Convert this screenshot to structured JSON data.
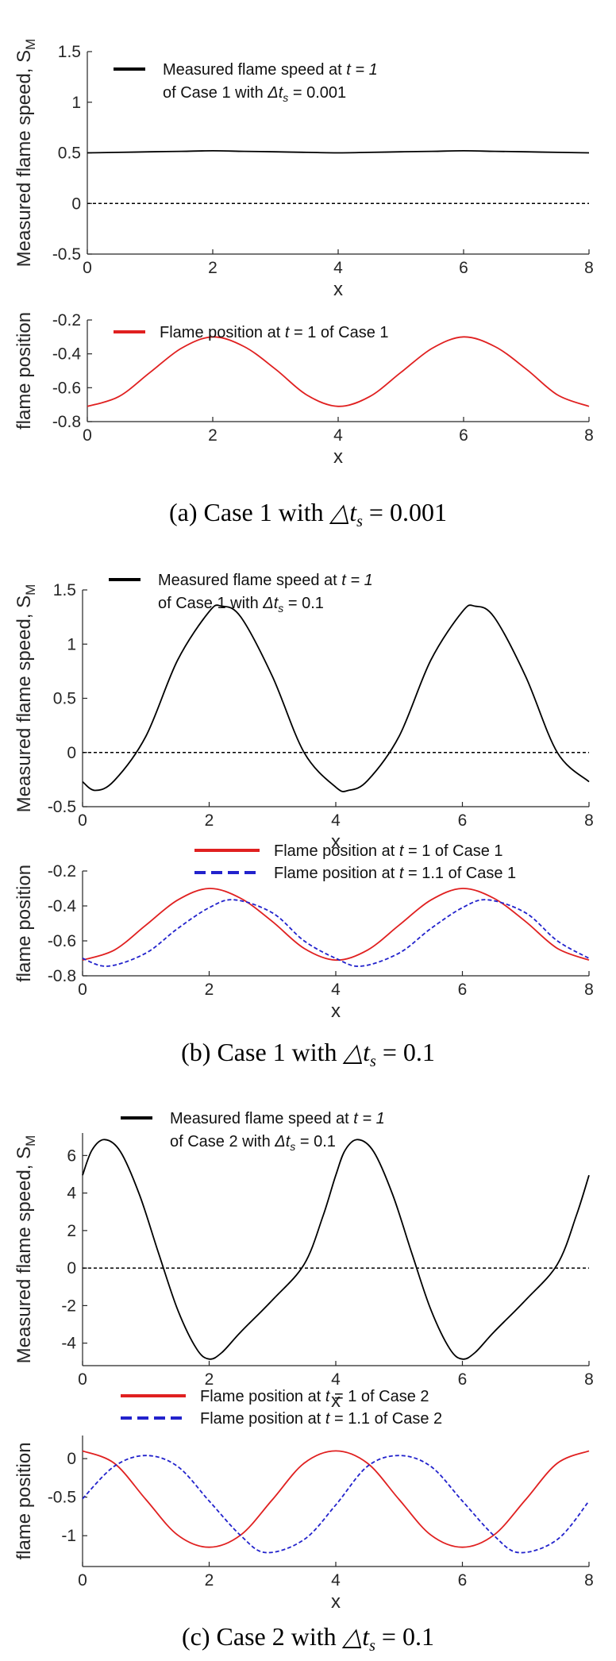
{
  "chart_data": [
    {
      "type": "line",
      "panel": "a-top",
      "xlabel": "x",
      "ylabel": "Measured flame speed, S",
      "ylabel_sub": "M",
      "xlim": [
        0,
        8
      ],
      "ylim": [
        -0.5,
        1.5
      ],
      "xticks": [
        "0",
        "2",
        "4",
        "6",
        "8"
      ],
      "yticks": [
        "-0.5",
        "0",
        "0.5",
        "1",
        "1.5"
      ],
      "series": [
        {
          "name": "Measured flame speed at t = 1 of Case 1 with Δts = 0.001",
          "legend_line1": "Measured flame speed at",
          "legend_line1_italic": "t = 1",
          "legend_line2": "of Case 1 with",
          "legend_line2_delta": "Δt",
          "legend_line2_sub": "s",
          "legend_line2_value": " = 0.001",
          "color": "#000000",
          "x": [
            0,
            0.5,
            1,
            1.5,
            2,
            2.5,
            3,
            3.5,
            4,
            4.5,
            5,
            5.5,
            6,
            6.5,
            7,
            7.5,
            8
          ],
          "y": [
            0.5,
            0.505,
            0.51,
            0.515,
            0.52,
            0.515,
            0.51,
            0.505,
            0.5,
            0.505,
            0.51,
            0.515,
            0.52,
            0.515,
            0.51,
            0.505,
            0.5
          ]
        },
        {
          "name": "zero line",
          "color": "#000000",
          "dashed": true,
          "x": [
            0,
            8
          ],
          "y": [
            0,
            0
          ]
        }
      ]
    },
    {
      "type": "line",
      "panel": "a-bottom",
      "xlabel": "x",
      "ylabel": "flame position",
      "xlim": [
        0,
        8
      ],
      "ylim": [
        -0.8,
        -0.2
      ],
      "xticks": [
        "0",
        "2",
        "4",
        "6",
        "8"
      ],
      "yticks": [
        "-0.8",
        "-0.6",
        "-0.4",
        "-0.2"
      ],
      "series": [
        {
          "name": "Flame position at t = 1 of Case 1",
          "legend_pre": "Flame position at ",
          "legend_italic": "t",
          "legend_post": " = 1 of Case 1",
          "color": "#e02020",
          "x": [
            0,
            0.5,
            1,
            1.5,
            2,
            2.5,
            3,
            3.5,
            4,
            4.5,
            5,
            5.5,
            6,
            6.5,
            7,
            7.5,
            8
          ],
          "y": [
            -0.71,
            -0.653,
            -0.51,
            -0.367,
            -0.3,
            -0.357,
            -0.49,
            -0.643,
            -0.71,
            -0.653,
            -0.51,
            -0.367,
            -0.3,
            -0.357,
            -0.49,
            -0.643,
            -0.71
          ]
        }
      ]
    },
    {
      "type": "line",
      "panel": "b-top",
      "xlabel": "x",
      "ylabel": "Measured flame speed, S",
      "ylabel_sub": "M",
      "xlim": [
        0,
        8
      ],
      "ylim": [
        -0.5,
        1.5
      ],
      "xticks": [
        "0",
        "2",
        "4",
        "6",
        "8"
      ],
      "yticks": [
        "-0.5",
        "0",
        "0.5",
        "1",
        "1.5"
      ],
      "series": [
        {
          "name": "Measured flame speed at t = 1 of Case 1 with Δts = 0.1",
          "legend_line1": "Measured flame speed at",
          "legend_line1_italic": "t = 1",
          "legend_line2": "of Case 1 with",
          "legend_line2_delta": "Δt",
          "legend_line2_sub": "s",
          "legend_line2_value": " = 0.1",
          "color": "#000000",
          "x": [
            0,
            0.2,
            0.5,
            1,
            1.5,
            2,
            2.2,
            2.5,
            3,
            3.5,
            4,
            4.2,
            4.5,
            5,
            5.5,
            6,
            6.2,
            6.5,
            7,
            7.5,
            8
          ],
          "y": [
            -0.27,
            -0.35,
            -0.26,
            0.15,
            0.85,
            1.3,
            1.35,
            1.25,
            0.7,
            0.0,
            -0.32,
            -0.35,
            -0.26,
            0.15,
            0.85,
            1.3,
            1.35,
            1.25,
            0.7,
            0.0,
            -0.27
          ]
        },
        {
          "name": "zero line",
          "color": "#000000",
          "dashed": true,
          "x": [
            0,
            8
          ],
          "y": [
            0,
            0
          ]
        }
      ]
    },
    {
      "type": "line",
      "panel": "b-bottom",
      "xlabel": "x",
      "ylabel": "flame position",
      "xlim": [
        0,
        8
      ],
      "ylim": [
        -0.8,
        -0.2
      ],
      "xticks": [
        "0",
        "2",
        "4",
        "6",
        "8"
      ],
      "yticks": [
        "-0.8",
        "-0.6",
        "-0.4",
        "-0.2"
      ],
      "series": [
        {
          "name": "Flame position at t = 1 of Case 1",
          "legend_pre": "Flame position at ",
          "legend_italic": "t",
          "legend_post": " = 1    of Case 1",
          "color": "#e02020",
          "x": [
            0,
            0.5,
            1,
            1.5,
            2,
            2.5,
            3,
            3.5,
            4,
            4.5,
            5,
            5.5,
            6,
            6.5,
            7,
            7.5,
            8
          ],
          "y": [
            -0.71,
            -0.653,
            -0.51,
            -0.367,
            -0.3,
            -0.357,
            -0.49,
            -0.643,
            -0.71,
            -0.653,
            -0.51,
            -0.367,
            -0.3,
            -0.357,
            -0.49,
            -0.643,
            -0.71
          ]
        },
        {
          "name": "Flame position at t = 1.1 of Case 1",
          "legend_pre": "Flame position at ",
          "legend_italic": "t",
          "legend_post": " = 1.1 of Case 1",
          "color": "#2222cc",
          "dashed": true,
          "x": [
            0,
            0.4,
            1,
            1.5,
            2,
            2.4,
            3,
            3.5,
            4,
            4.4,
            5,
            5.5,
            6,
            6.4,
            7,
            7.5,
            8
          ],
          "y": [
            -0.7,
            -0.745,
            -0.67,
            -0.53,
            -0.41,
            -0.365,
            -0.44,
            -0.6,
            -0.7,
            -0.745,
            -0.67,
            -0.53,
            -0.41,
            -0.365,
            -0.44,
            -0.6,
            -0.7
          ]
        }
      ]
    },
    {
      "type": "line",
      "panel": "c-top",
      "xlabel": "x",
      "ylabel": "Measured flame speed, S",
      "ylabel_sub": "M",
      "xlim": [
        0,
        8
      ],
      "ylim": [
        -5.2,
        7.2
      ],
      "xticks": [
        "0",
        "2",
        "4",
        "6",
        "8"
      ],
      "yticks": [
        "-4",
        "-2",
        "0",
        "2",
        "4",
        "6"
      ],
      "series": [
        {
          "name": "Measured flame speed at t = 1 of Case 2 with Δts = 0.1",
          "legend_line1": "Measured flame speed at",
          "legend_line1_italic": "t = 1",
          "legend_line2": "of Case 2 with",
          "legend_line2_delta": "Δt",
          "legend_line2_sub": "s",
          "legend_line2_value": " = 0.1",
          "color": "#000000",
          "x": [
            0,
            0.15,
            0.35,
            0.6,
            0.9,
            1.2,
            1.5,
            1.8,
            2.0,
            2.2,
            2.5,
            3.0,
            3.5,
            3.8,
            4.0,
            4.15,
            4.35,
            4.6,
            4.9,
            5.2,
            5.5,
            5.8,
            6.0,
            6.2,
            6.5,
            7.0,
            7.5,
            7.8,
            8.0
          ],
          "y": [
            4.95,
            6.3,
            6.85,
            6.2,
            3.9,
            0.8,
            -2.2,
            -4.3,
            -4.85,
            -4.5,
            -3.4,
            -1.7,
            0.2,
            2.8,
            4.95,
            6.3,
            6.85,
            6.2,
            3.9,
            0.8,
            -2.2,
            -4.3,
            -4.85,
            -4.5,
            -3.4,
            -1.7,
            0.2,
            2.8,
            4.95
          ]
        },
        {
          "name": "zero line",
          "color": "#000000",
          "dashed": true,
          "x": [
            0,
            8
          ],
          "y": [
            0,
            0
          ]
        }
      ]
    },
    {
      "type": "line",
      "panel": "c-bottom",
      "xlabel": "x",
      "ylabel": "flame position",
      "xlim": [
        0,
        8
      ],
      "ylim": [
        -1.4,
        0.3
      ],
      "xticks": [
        "0",
        "2",
        "4",
        "6",
        "8"
      ],
      "yticks": [
        "-1",
        "-0.5",
        "0"
      ],
      "series": [
        {
          "name": "Flame position at t = 1 of Case 2",
          "legend_pre": "Flame position at ",
          "legend_italic": "t",
          "legend_post": " = 1    of Case 2",
          "color": "#e02020",
          "x": [
            0,
            0.5,
            1,
            1.5,
            2,
            2.5,
            3,
            3.5,
            4,
            4.5,
            5,
            5.5,
            6,
            6.5,
            7,
            7.5,
            8
          ],
          "y": [
            0.1,
            -0.06,
            -0.53,
            -0.99,
            -1.15,
            -0.99,
            -0.53,
            -0.06,
            0.1,
            -0.06,
            -0.53,
            -0.99,
            -1.15,
            -0.99,
            -0.53,
            -0.06,
            0.1
          ]
        },
        {
          "name": "Flame position at t = 1.1 of Case 2",
          "legend_pre": "Flame position at ",
          "legend_italic": "t",
          "legend_post": " = 1.1 of Case 2",
          "color": "#2222cc",
          "dashed": true,
          "x": [
            0,
            0.5,
            1,
            1.5,
            2,
            2.5,
            2.9,
            3.5,
            4,
            4.5,
            5,
            5.5,
            6,
            6.5,
            6.9,
            7.5,
            8
          ],
          "y": [
            -0.52,
            -0.1,
            0.04,
            -0.1,
            -0.55,
            -1.0,
            -1.22,
            -1.05,
            -0.6,
            -0.1,
            0.04,
            -0.1,
            -0.55,
            -1.0,
            -1.22,
            -1.05,
            -0.55
          ]
        }
      ]
    }
  ],
  "captions": {
    "a": {
      "pre": "(a) Case 1 with ",
      "delta": "△t",
      "sub": "s",
      "post": " = 0.001"
    },
    "b": {
      "pre": "(b) Case 1 with ",
      "delta": "△t",
      "sub": "s",
      "post": " = 0.1"
    },
    "c": {
      "pre": "(c) Case 2 with ",
      "delta": "△t",
      "sub": "s",
      "post": " = 0.1"
    }
  }
}
